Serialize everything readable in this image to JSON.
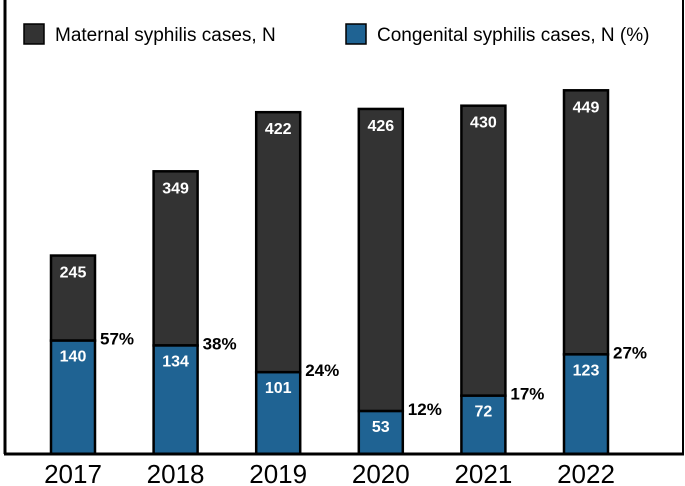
{
  "chart_data": {
    "type": "bar",
    "title": "",
    "xlabel": "",
    "ylabel": "",
    "ylim": [
      0,
      460
    ],
    "categories": [
      "2017",
      "2018",
      "2019",
      "2020",
      "2021",
      "2022"
    ],
    "series": [
      {
        "name": "Maternal syphilis cases, N",
        "color": "#333333",
        "values": [
          245,
          349,
          422,
          426,
          430,
          449
        ],
        "labels": [
          "245",
          "349",
          "422",
          "426",
          "430",
          "449"
        ]
      },
      {
        "name": "Congenital syphilis cases, N (%)",
        "color": "#1f6393",
        "values": [
          140,
          134,
          101,
          53,
          72,
          123
        ],
        "labels": [
          "140",
          "134",
          "101",
          "53",
          "72",
          "123"
        ],
        "percent_labels": [
          "57%",
          "38%",
          "24%",
          "12%",
          "17%",
          "27%"
        ]
      }
    ],
    "legend": "top"
  }
}
